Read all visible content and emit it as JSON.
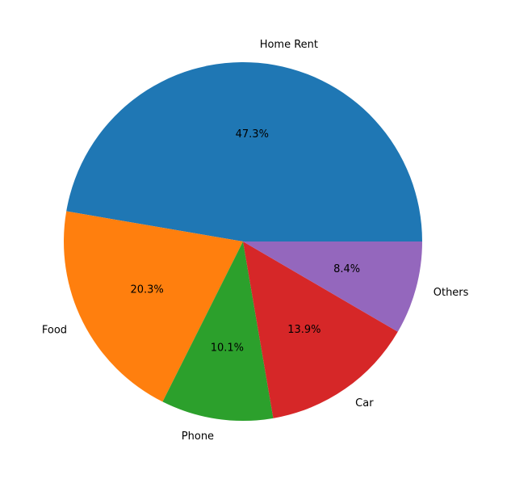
{
  "chart_data": {
    "type": "pie",
    "title": "",
    "start_angle_deg": 0,
    "direction": "counterclockwise",
    "slices": [
      {
        "label": "Home Rent",
        "value": 47.3,
        "pct_text": "47.3%",
        "color": "#1f77b4"
      },
      {
        "label": "Food",
        "value": 20.3,
        "pct_text": "20.3%",
        "color": "#ff7f0e"
      },
      {
        "label": "Phone",
        "value": 10.1,
        "pct_text": "10.1%",
        "color": "#2ca02c"
      },
      {
        "label": "Car",
        "value": 13.9,
        "pct_text": "13.9%",
        "color": "#d62728"
      },
      {
        "label": "Others",
        "value": 8.4,
        "pct_text": "8.4%",
        "color": "#9467bd"
      }
    ]
  }
}
